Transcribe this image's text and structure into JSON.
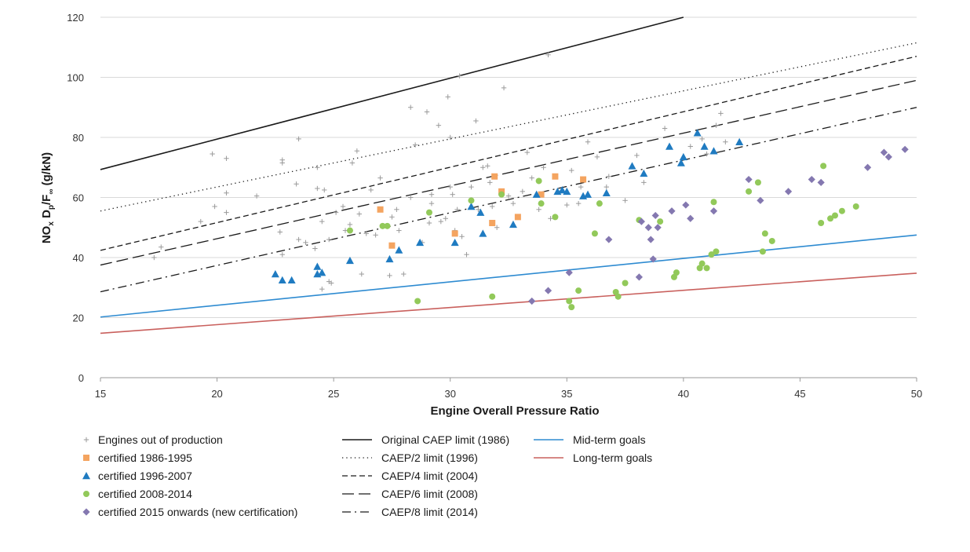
{
  "chart_data": {
    "type": "scatter",
    "title": "",
    "xlabel": "Engine Overall Pressure Ratio",
    "ylabel": {
      "main": "NO",
      "sub1": "x",
      "mid1": " D",
      "sub2": "p",
      "mid2": "/F",
      "sub3": "∞",
      "tail": " (g/kN)"
    },
    "xlim": [
      15,
      50
    ],
    "ylim": [
      0,
      120
    ],
    "x_ticks": [
      15,
      20,
      25,
      30,
      35,
      40,
      45,
      50
    ],
    "y_ticks": [
      0,
      20,
      40,
      60,
      80,
      100,
      120
    ],
    "grid": "horizontal",
    "legend_position": "bottom",
    "colors": {
      "out_of_production": "#9a9a9a",
      "c1986": "#f4a460",
      "c1996": "#1f7bc1",
      "c2008": "#92c95a",
      "c2015": "#8478b0",
      "limit": "#1a1a1a",
      "mid_term": "#2e8bd1",
      "long_term": "#c9605d",
      "grid": "#d9d9d9"
    },
    "point_series": [
      {
        "name": "Engines out of production",
        "marker": "plus",
        "color": "#9a9a9a",
        "points": [
          [
            17.3,
            40
          ],
          [
            17.6,
            43.5
          ],
          [
            19.3,
            52
          ],
          [
            19.8,
            74.5
          ],
          [
            19.9,
            57
          ],
          [
            20.4,
            73
          ],
          [
            20.4,
            61.5
          ],
          [
            20.4,
            55
          ],
          [
            21.7,
            60.5
          ],
          [
            22.7,
            48.5
          ],
          [
            22.8,
            41
          ],
          [
            22.8,
            72.5
          ],
          [
            22.8,
            71.5
          ],
          [
            23.4,
            64.5
          ],
          [
            23.5,
            79.5
          ],
          [
            23.5,
            46
          ],
          [
            23.8,
            45
          ],
          [
            24.2,
            43
          ],
          [
            24.3,
            70
          ],
          [
            24.3,
            63
          ],
          [
            24.6,
            62.5
          ],
          [
            24.5,
            52
          ],
          [
            24.5,
            29.5
          ],
          [
            24.8,
            32
          ],
          [
            24.9,
            31.5
          ],
          [
            24.8,
            46
          ],
          [
            25.1,
            55
          ],
          [
            25.4,
            57
          ],
          [
            25.5,
            49
          ],
          [
            25.7,
            51
          ],
          [
            25.8,
            71.5
          ],
          [
            26.0,
            75.5
          ],
          [
            26.1,
            54.5
          ],
          [
            26.2,
            34.5
          ],
          [
            26.4,
            48
          ],
          [
            26.6,
            62.5
          ],
          [
            26.8,
            47.5
          ],
          [
            27.0,
            66.5
          ],
          [
            27.4,
            34
          ],
          [
            27.5,
            53.5
          ],
          [
            27.7,
            56
          ],
          [
            27.8,
            49
          ],
          [
            28.0,
            34.5
          ],
          [
            28.3,
            90
          ],
          [
            28.3,
            60
          ],
          [
            28.5,
            77.5
          ],
          [
            28.8,
            45
          ],
          [
            29.0,
            88.5
          ],
          [
            29.1,
            51.5
          ],
          [
            29.2,
            61
          ],
          [
            29.2,
            58
          ],
          [
            29.5,
            84
          ],
          [
            29.6,
            52
          ],
          [
            29.8,
            53
          ],
          [
            29.9,
            93.5
          ],
          [
            30.0,
            80
          ],
          [
            30.0,
            63.5
          ],
          [
            30.1,
            61
          ],
          [
            30.2,
            49
          ],
          [
            30.3,
            56
          ],
          [
            30.4,
            100.5
          ],
          [
            30.5,
            47
          ],
          [
            30.7,
            41
          ],
          [
            30.9,
            63.5
          ],
          [
            31.1,
            85.5
          ],
          [
            31.2,
            56
          ],
          [
            31.4,
            70
          ],
          [
            31.6,
            70.5
          ],
          [
            31.7,
            65
          ],
          [
            31.8,
            57
          ],
          [
            32.0,
            50
          ],
          [
            32.2,
            62
          ],
          [
            32.3,
            96.5
          ],
          [
            32.5,
            60.5
          ],
          [
            32.7,
            58
          ],
          [
            33.1,
            62
          ],
          [
            33.3,
            75
          ],
          [
            33.5,
            66.5
          ],
          [
            33.8,
            56
          ],
          [
            34.0,
            70
          ],
          [
            34.2,
            107.5
          ],
          [
            34.3,
            53
          ],
          [
            35.0,
            57.5
          ],
          [
            35.2,
            69
          ],
          [
            35.5,
            58
          ],
          [
            35.6,
            63.5
          ],
          [
            35.9,
            78.5
          ],
          [
            36.3,
            73.5
          ],
          [
            36.7,
            63.5
          ],
          [
            36.8,
            67
          ],
          [
            37.5,
            59
          ],
          [
            38.0,
            74
          ],
          [
            38.3,
            65
          ],
          [
            39.2,
            83
          ],
          [
            40.3,
            77
          ],
          [
            40.8,
            79.5
          ],
          [
            41.0,
            74.5
          ],
          [
            41.4,
            84
          ],
          [
            41.6,
            88
          ],
          [
            41.8,
            78.5
          ]
        ]
      },
      {
        "name": "certified 1986-1995",
        "marker": "square",
        "color": "#f4a460",
        "points": [
          [
            27.0,
            56
          ],
          [
            27.5,
            44
          ],
          [
            30.2,
            48
          ],
          [
            31.8,
            51.5
          ],
          [
            31.9,
            67
          ],
          [
            32.2,
            62
          ],
          [
            32.9,
            53.5
          ],
          [
            33.9,
            61
          ],
          [
            34.5,
            67
          ],
          [
            35.7,
            66
          ]
        ]
      },
      {
        "name": "certified 1996-2007",
        "marker": "triangle",
        "color": "#1f7bc1",
        "points": [
          [
            22.5,
            34.5
          ],
          [
            22.8,
            32.5
          ],
          [
            23.2,
            32.5
          ],
          [
            24.3,
            37
          ],
          [
            24.3,
            34.5
          ],
          [
            24.5,
            35
          ],
          [
            25.7,
            39
          ],
          [
            27.4,
            39.5
          ],
          [
            27.8,
            42.5
          ],
          [
            28.7,
            45
          ],
          [
            30.2,
            45
          ],
          [
            30.9,
            57
          ],
          [
            31.3,
            55
          ],
          [
            31.4,
            48
          ],
          [
            32.7,
            51
          ],
          [
            33.7,
            61
          ],
          [
            34.6,
            62
          ],
          [
            34.8,
            62.5
          ],
          [
            35.0,
            62
          ],
          [
            35.7,
            60.5
          ],
          [
            35.9,
            61
          ],
          [
            36.7,
            61.5
          ],
          [
            37.8,
            70.5
          ],
          [
            38.3,
            68
          ],
          [
            39.4,
            77
          ],
          [
            39.9,
            71.5
          ],
          [
            40.0,
            73.5
          ],
          [
            40.6,
            81.5
          ],
          [
            40.9,
            77
          ],
          [
            41.3,
            75.5
          ],
          [
            42.4,
            78.5
          ]
        ]
      },
      {
        "name": "certified 2008-2014",
        "marker": "circle",
        "color": "#92c95a",
        "points": [
          [
            25.7,
            49
          ],
          [
            27.1,
            50.5
          ],
          [
            27.3,
            50.5
          ],
          [
            28.6,
            25.5
          ],
          [
            29.1,
            55
          ],
          [
            30.9,
            59
          ],
          [
            31.8,
            27
          ],
          [
            32.2,
            61
          ],
          [
            33.8,
            65.5
          ],
          [
            33.9,
            58
          ],
          [
            34.5,
            53.5
          ],
          [
            35.1,
            25.5
          ],
          [
            35.2,
            23.5
          ],
          [
            35.5,
            29
          ],
          [
            36.2,
            48
          ],
          [
            36.4,
            58
          ],
          [
            37.1,
            28.5
          ],
          [
            37.2,
            27
          ],
          [
            37.5,
            31.5
          ],
          [
            38.1,
            52.5
          ],
          [
            39.0,
            52
          ],
          [
            39.6,
            33.5
          ],
          [
            39.7,
            35
          ],
          [
            40.7,
            36.5
          ],
          [
            40.8,
            38
          ],
          [
            41.0,
            36.5
          ],
          [
            41.2,
            41
          ],
          [
            41.3,
            58.5
          ],
          [
            41.4,
            42
          ],
          [
            42.8,
            62
          ],
          [
            43.2,
            65
          ],
          [
            43.4,
            42
          ],
          [
            43.5,
            48
          ],
          [
            43.8,
            45.5
          ],
          [
            45.9,
            51.5
          ],
          [
            46.0,
            70.5
          ],
          [
            46.3,
            53
          ],
          [
            46.5,
            54
          ],
          [
            46.8,
            55.5
          ],
          [
            47.4,
            57
          ]
        ]
      },
      {
        "name": "certified 2015 onwards (new certification)",
        "marker": "diamond",
        "color": "#8478b0",
        "points": [
          [
            33.5,
            25.5
          ],
          [
            34.2,
            29
          ],
          [
            35.1,
            35
          ],
          [
            36.8,
            46
          ],
          [
            38.1,
            33.5
          ],
          [
            38.2,
            52
          ],
          [
            38.5,
            50
          ],
          [
            38.6,
            46
          ],
          [
            38.7,
            39.5
          ],
          [
            38.8,
            54
          ],
          [
            38.9,
            50
          ],
          [
            39.5,
            55.5
          ],
          [
            40.1,
            57.5
          ],
          [
            40.3,
            53
          ],
          [
            41.3,
            55.5
          ],
          [
            42.8,
            66
          ],
          [
            43.3,
            59
          ],
          [
            44.5,
            62
          ],
          [
            45.5,
            66
          ],
          [
            45.9,
            65
          ],
          [
            47.9,
            70
          ],
          [
            48.6,
            75
          ],
          [
            48.8,
            73.5
          ],
          [
            49.5,
            76
          ]
        ]
      }
    ],
    "line_series": [
      {
        "name": "Original CAEP limit (1986)",
        "dash": "solid",
        "color": "#1a1a1a",
        "x": [
          15,
          40
        ],
        "y": [
          69.3,
          120
        ]
      },
      {
        "name": "CAEP/2 limit (1996)",
        "dash": "dotted",
        "color": "#1a1a1a",
        "x": [
          15,
          50
        ],
        "y": [
          55.5,
          111.5
        ]
      },
      {
        "name": "CAEP/4 limit (2004)",
        "dash": "short-dash",
        "color": "#1a1a1a",
        "x": [
          15,
          50
        ],
        "y": [
          42.4,
          107
        ]
      },
      {
        "name": "CAEP/6 limit (2008)",
        "dash": "long-dash",
        "color": "#1a1a1a",
        "x": [
          15,
          50
        ],
        "y": [
          37.5,
          99
        ]
      },
      {
        "name": "CAEP/8 limit (2014)",
        "dash": "dash-dot",
        "color": "#1a1a1a",
        "x": [
          15,
          50
        ],
        "y": [
          28.6,
          90
        ]
      },
      {
        "name": "Mid-term goals",
        "dash": "solid",
        "color": "#2e8bd1",
        "x": [
          15,
          50
        ],
        "y": [
          20.2,
          47.5
        ]
      },
      {
        "name": "Long-term goals",
        "dash": "solid",
        "color": "#c9605d",
        "x": [
          15,
          50
        ],
        "y": [
          14.8,
          34.8
        ]
      }
    ]
  }
}
